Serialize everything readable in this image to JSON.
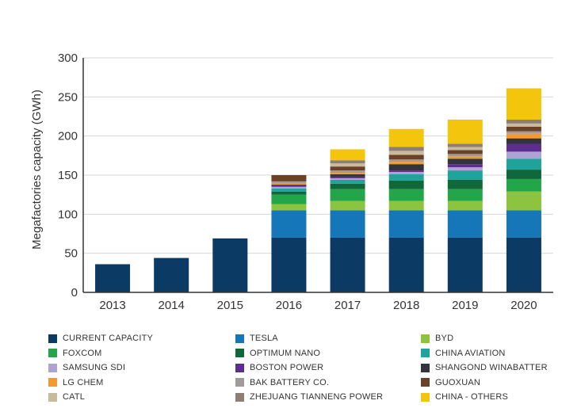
{
  "chart_data": {
    "type": "bar",
    "stacked": true,
    "title": "",
    "xlabel": "",
    "ylabel": "Megafactories capacity (GWh)",
    "categories": [
      "2013",
      "2014",
      "2015",
      "2016",
      "2017",
      "2018",
      "2019",
      "2020"
    ],
    "ylim": [
      0,
      300
    ],
    "yticks": [
      0,
      50,
      100,
      150,
      200,
      250,
      300
    ],
    "grid": true,
    "legend_position": "bottom",
    "legend_columns": 3,
    "series": [
      {
        "name": "CURRENT CAPACITY",
        "color": "#0b3a64",
        "values": [
          36,
          44,
          69,
          70,
          70,
          70,
          70,
          70
        ]
      },
      {
        "name": "TESLA",
        "color": "#1577b8",
        "values": [
          0,
          0,
          0,
          35,
          35,
          35,
          35,
          35
        ]
      },
      {
        "name": "BYD",
        "color": "#8cc43f",
        "values": [
          0,
          0,
          0,
          8,
          12,
          12,
          12,
          24
        ]
      },
      {
        "name": "FOXCOM",
        "color": "#23a64a",
        "values": [
          0,
          0,
          0,
          12,
          15,
          15,
          15,
          16
        ]
      },
      {
        "name": "OPTIMUM NANO",
        "color": "#10683a",
        "values": [
          0,
          0,
          0,
          4,
          7,
          11,
          12,
          12
        ]
      },
      {
        "name": "CHINA AVIATION",
        "color": "#1fa39b",
        "values": [
          0,
          0,
          0,
          4,
          5,
          8,
          12,
          14
        ]
      },
      {
        "name": "SAMSUNG SDI",
        "color": "#aea3d4",
        "values": [
          0,
          0,
          0,
          2,
          2,
          3,
          4,
          9
        ]
      },
      {
        "name": "BOSTON POWER",
        "color": "#5d2d91",
        "values": [
          0,
          0,
          0,
          2,
          2,
          2,
          4,
          10
        ]
      },
      {
        "name": "SHANGOND WINABATTER",
        "color": "#33353d",
        "values": [
          0,
          0,
          0,
          1,
          3,
          8,
          7,
          7
        ]
      },
      {
        "name": "LG CHEM",
        "color": "#f59b2d",
        "values": [
          0,
          0,
          0,
          1,
          2,
          3,
          3,
          6
        ]
      },
      {
        "name": "BAK BATTERY CO.",
        "color": "#a09a9a",
        "values": [
          0,
          0,
          0,
          3,
          3,
          3,
          3,
          3
        ]
      },
      {
        "name": "GUOXUAN",
        "color": "#6b4226",
        "values": [
          0,
          0,
          0,
          8,
          5,
          6,
          5,
          6
        ]
      },
      {
        "name": "CATL",
        "color": "#c8ba9c",
        "values": [
          0,
          0,
          0,
          0,
          4,
          5,
          4,
          4
        ]
      },
      {
        "name": "ZHEJUANG TIANNENG POWER",
        "color": "#8e7e73",
        "values": [
          0,
          0,
          0,
          0,
          4,
          5,
          4,
          5
        ]
      },
      {
        "name": "CHINA - OTHERS",
        "color": "#f3c60d",
        "values": [
          0,
          0,
          0,
          0,
          14,
          23,
          31,
          40
        ]
      }
    ]
  }
}
